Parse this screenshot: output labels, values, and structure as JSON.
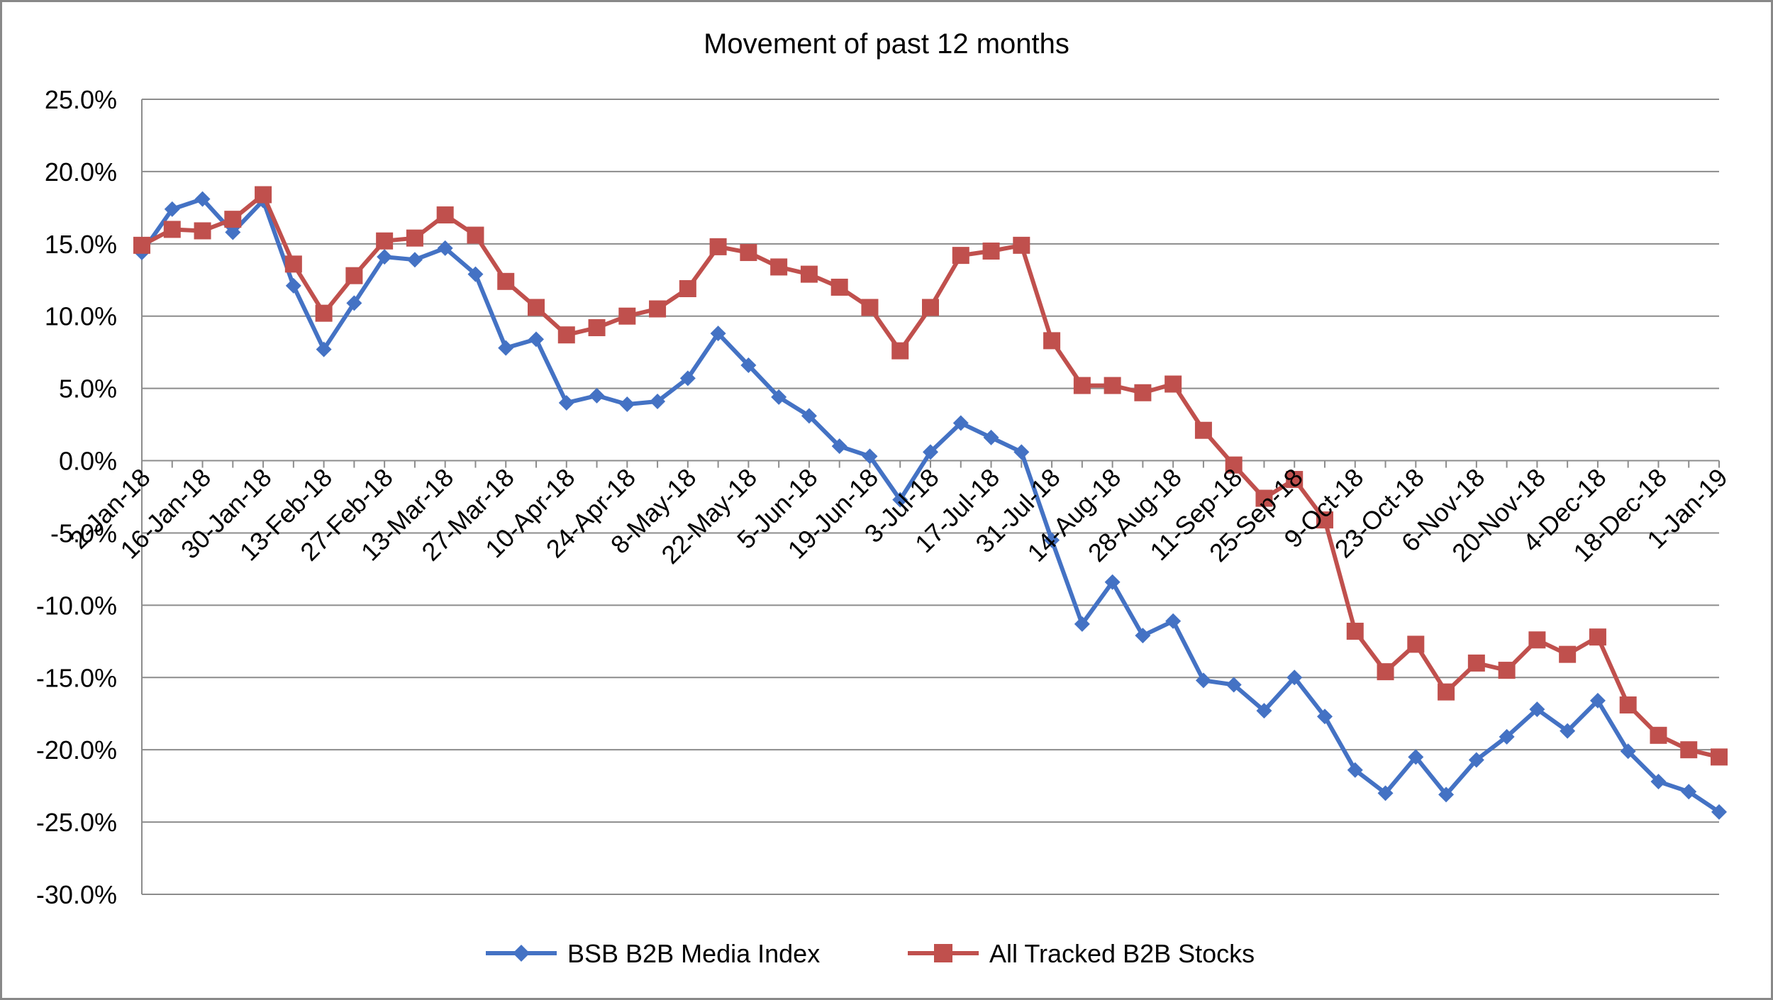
{
  "chart_data": {
    "type": "line",
    "title": "Movement of past 12 months",
    "xlabel": "",
    "ylabel": "",
    "ylim": [
      -30,
      25
    ],
    "y_ticks": [
      25,
      20,
      15,
      10,
      5,
      0,
      -5,
      -10,
      -15,
      -20,
      -25,
      -30
    ],
    "y_tick_labels": [
      "25.0%",
      "20.0%",
      "15.0%",
      "10.0%",
      "5.0%",
      "0.0%",
      "-5.0%",
      "-10.0%",
      "-15.0%",
      "-20.0%",
      "-25.0%",
      "-30.0%"
    ],
    "grid": true,
    "legend_position": "bottom",
    "x": [
      "2-Jan-18",
      "9-Jan-18",
      "16-Jan-18",
      "23-Jan-18",
      "30-Jan-18",
      "6-Feb-18",
      "13-Feb-18",
      "20-Feb-18",
      "27-Feb-18",
      "6-Mar-18",
      "13-Mar-18",
      "20-Mar-18",
      "27-Mar-18",
      "3-Apr-18",
      "10-Apr-18",
      "17-Apr-18",
      "24-Apr-18",
      "1-May-18",
      "8-May-18",
      "15-May-18",
      "22-May-18",
      "29-May-18",
      "5-Jun-18",
      "12-Jun-18",
      "19-Jun-18",
      "26-Jun-18",
      "3-Jul-18",
      "10-Jul-18",
      "17-Jul-18",
      "24-Jul-18",
      "31-Jul-18",
      "7-Aug-18",
      "14-Aug-18",
      "21-Aug-18",
      "28-Aug-18",
      "4-Sep-18",
      "11-Sep-18",
      "18-Sep-18",
      "25-Sep-18",
      "2-Oct-18",
      "9-Oct-18",
      "16-Oct-18",
      "23-Oct-18",
      "30-Oct-18",
      "6-Nov-18",
      "13-Nov-18",
      "20-Nov-18",
      "27-Nov-18",
      "4-Dec-18",
      "11-Dec-18",
      "18-Dec-18",
      "25-Dec-18",
      "1-Jan-19"
    ],
    "x_tick_labels": [
      "2-Jan-18",
      "16-Jan-18",
      "30-Jan-18",
      "13-Feb-18",
      "27-Feb-18",
      "13-Mar-18",
      "27-Mar-18",
      "10-Apr-18",
      "24-Apr-18",
      "8-May-18",
      "22-May-18",
      "5-Jun-18",
      "19-Jun-18",
      "3-Jul-18",
      "17-Jul-18",
      "31-Jul-18",
      "14-Aug-18",
      "28-Aug-18",
      "11-Sep-18",
      "25-Sep-18",
      "9-Oct-18",
      "23-Oct-18",
      "6-Nov-18",
      "20-Nov-18",
      "4-Dec-18",
      "18-Dec-18",
      "1-Jan-19"
    ],
    "series": [
      {
        "name": "BSB B2B Media Index",
        "color": "#4472C4",
        "marker": "diamond",
        "values": [
          14.4,
          17.4,
          18.1,
          15.8,
          18.0,
          12.1,
          7.7,
          10.9,
          14.1,
          13.9,
          14.7,
          12.9,
          7.8,
          8.4,
          4.0,
          4.5,
          3.9,
          4.1,
          5.7,
          8.8,
          6.6,
          4.4,
          3.1,
          1.0,
          0.3,
          -2.7,
          0.6,
          2.6,
          1.6,
          0.6,
          -5.5,
          -11.3,
          -8.4,
          -12.1,
          -11.1,
          -15.2,
          -15.5,
          -17.3,
          -15.0,
          -17.7,
          -21.4,
          -23.0,
          -20.5,
          -23.1,
          -20.7,
          -19.1,
          -17.2,
          -18.7,
          -16.6,
          -20.1,
          -22.2,
          -22.9,
          -24.3
        ]
      },
      {
        "name": "All Tracked B2B Stocks",
        "color": "#C0504D",
        "marker": "square",
        "values": [
          14.9,
          16.0,
          15.9,
          16.7,
          18.4,
          13.6,
          10.2,
          12.8,
          15.2,
          15.4,
          17.0,
          15.6,
          12.4,
          10.6,
          8.7,
          9.2,
          10.0,
          10.5,
          11.9,
          14.8,
          14.4,
          13.4,
          12.9,
          12.0,
          10.6,
          7.6,
          10.6,
          14.2,
          14.5,
          14.9,
          8.3,
          5.2,
          5.2,
          4.7,
          5.3,
          2.1,
          -0.3,
          -2.6,
          -1.3,
          -4.1,
          -11.8,
          -14.6,
          -12.7,
          -16.0,
          -14.0,
          -14.5,
          -12.4,
          -13.4,
          -12.2,
          -16.9,
          -19.0,
          -20.0,
          -20.5
        ]
      }
    ]
  }
}
